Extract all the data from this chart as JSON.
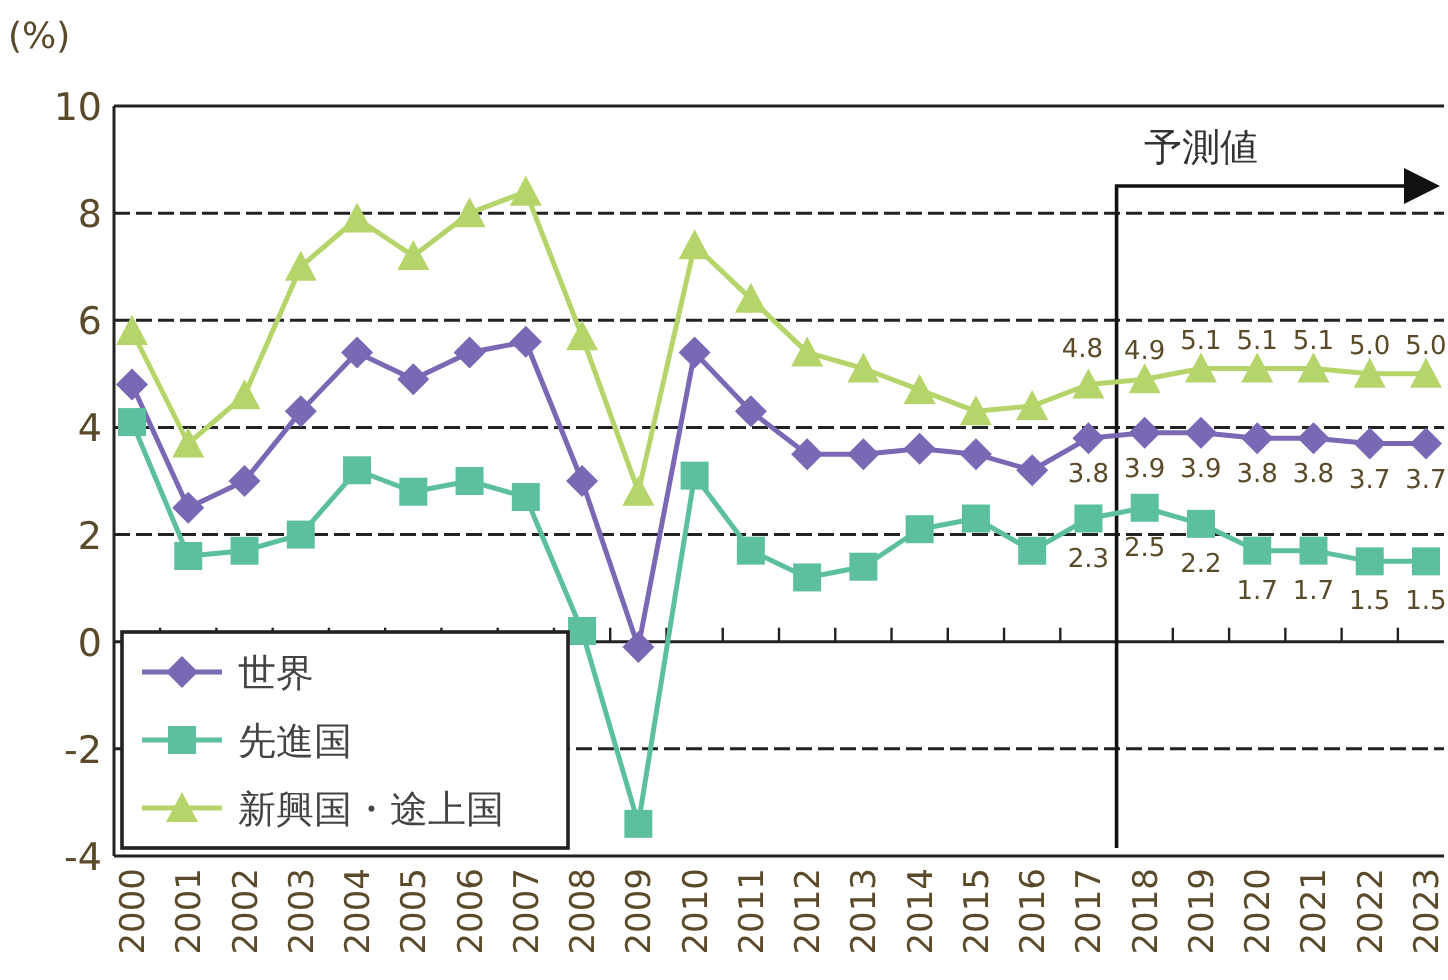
{
  "chart_data": {
    "type": "line",
    "ylabel": "(%)",
    "categories": [
      "2000",
      "2001",
      "2002",
      "2003",
      "2004",
      "2005",
      "2006",
      "2007",
      "2008",
      "2009",
      "2010",
      "2011",
      "2012",
      "2013",
      "2014",
      "2015",
      "2016",
      "2017",
      "2018",
      "2019",
      "2020",
      "2021",
      "2022",
      "2023"
    ],
    "series": [
      {
        "name": "世界",
        "color": "#7b68b5",
        "marker": "diamond",
        "values": [
          4.8,
          2.5,
          3.0,
          4.3,
          5.4,
          4.9,
          5.4,
          5.6,
          3.0,
          -0.1,
          5.4,
          4.3,
          3.5,
          3.5,
          3.6,
          3.5,
          3.2,
          3.8,
          3.9,
          3.9,
          3.8,
          3.8,
          3.7,
          3.7
        ],
        "value_labels": [
          null,
          null,
          null,
          null,
          null,
          null,
          null,
          null,
          null,
          null,
          null,
          null,
          null,
          null,
          null,
          null,
          null,
          "3.8",
          "3.9",
          "3.9",
          "3.8",
          "3.8",
          "3.7",
          "3.7"
        ]
      },
      {
        "name": "先進国",
        "color": "#5cc0a0",
        "marker": "square",
        "values": [
          4.1,
          1.6,
          1.7,
          2.0,
          3.2,
          2.8,
          3.0,
          2.7,
          0.2,
          -3.4,
          3.1,
          1.7,
          1.2,
          1.4,
          2.1,
          2.3,
          1.7,
          2.3,
          2.5,
          2.2,
          1.7,
          1.7,
          1.5,
          1.5
        ],
        "value_labels": [
          null,
          null,
          null,
          null,
          null,
          null,
          null,
          null,
          null,
          null,
          null,
          null,
          null,
          null,
          null,
          null,
          null,
          "2.3",
          "2.5",
          "2.2",
          "1.7",
          "1.7",
          "1.5",
          "1.5"
        ]
      },
      {
        "name": "新興国・途上国",
        "color": "#b5d56a",
        "marker": "triangle",
        "values": [
          5.8,
          3.7,
          4.6,
          7.0,
          7.9,
          7.2,
          8.0,
          8.4,
          5.7,
          2.8,
          7.4,
          6.4,
          5.4,
          5.1,
          4.7,
          4.3,
          4.4,
          4.8,
          4.9,
          5.1,
          5.1,
          5.1,
          5.0,
          5.0
        ],
        "value_labels": [
          null,
          null,
          null,
          null,
          null,
          null,
          null,
          null,
          null,
          null,
          null,
          null,
          null,
          null,
          null,
          null,
          null,
          "4.8",
          "4.9",
          "5.1",
          "5.1",
          "5.1",
          "5.0",
          "5.0"
        ]
      }
    ],
    "ylim": [
      -4,
      10
    ],
    "yticks": [
      -4,
      -2,
      0,
      2,
      4,
      6,
      8,
      10
    ],
    "grid": "y",
    "legend": "bottom left",
    "line_style": "solid",
    "annotations": [
      "予測値"
    ]
  }
}
